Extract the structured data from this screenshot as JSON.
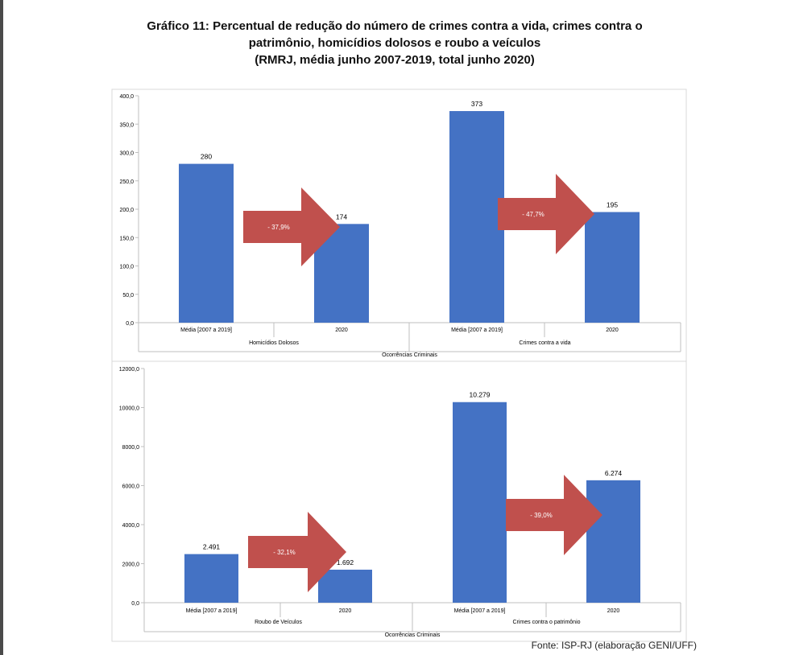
{
  "title": {
    "line1": "Gráfico 11: Percentual de redução do número de crimes contra a vida, crimes contra o",
    "line2": "patrimônio, homicídios dolosos e roubo a veículos",
    "line3": "(RMRJ, média junho 2007-2019, total junho 2020)"
  },
  "source": "Fonte: ISP-RJ (elaboração GENI/UFF)",
  "colors": {
    "bar": "#4472C4",
    "arrow": "#C0504D",
    "grid": "#d9d9d9",
    "axis": "#bfbfbf"
  },
  "chart_data": [
    {
      "type": "bar",
      "ylim": [
        0,
        400
      ],
      "yticks": [
        "0,0",
        "50,0",
        "100,0",
        "150,0",
        "200,0",
        "250,0",
        "300,0",
        "350,0",
        "400,0"
      ],
      "ytick_values": [
        0,
        50,
        100,
        150,
        200,
        250,
        300,
        350,
        400
      ],
      "xlabel": "Ocorrências Criminais",
      "groups": [
        {
          "name": "Homicídios Dolosos",
          "categories": [
            "Média [2007 a 2019]",
            "2020"
          ],
          "values": [
            280,
            174
          ],
          "value_labels": [
            "280",
            "174"
          ],
          "reduction": "- 37,9%"
        },
        {
          "name": "Crimes contra a vida",
          "categories": [
            "Média [2007 a 2019]",
            "2020"
          ],
          "values": [
            373,
            195
          ],
          "value_labels": [
            "373",
            "195"
          ],
          "reduction": "- 47,7%"
        }
      ]
    },
    {
      "type": "bar",
      "ylim": [
        0,
        12000
      ],
      "yticks": [
        "0,0",
        "2000,0",
        "4000,0",
        "6000,0",
        "8000,0",
        "10000,0",
        "12000,0"
      ],
      "ytick_values": [
        0,
        2000,
        4000,
        6000,
        8000,
        10000,
        12000
      ],
      "xlabel": "Ocorrências Criminais",
      "groups": [
        {
          "name": "Roubo de Veículos",
          "categories": [
            "Média [2007 a 2019]",
            "2020"
          ],
          "values": [
            2491,
            1692
          ],
          "value_labels": [
            "2.491",
            "1.692"
          ],
          "reduction": "- 32,1%"
        },
        {
          "name": "Crimes contra o patrimônio",
          "categories": [
            "Média [2007 a 2019]",
            "2020"
          ],
          "values": [
            10279,
            6274
          ],
          "value_labels": [
            "10.279",
            "6.274"
          ],
          "reduction": "- 39,0%"
        }
      ]
    }
  ]
}
